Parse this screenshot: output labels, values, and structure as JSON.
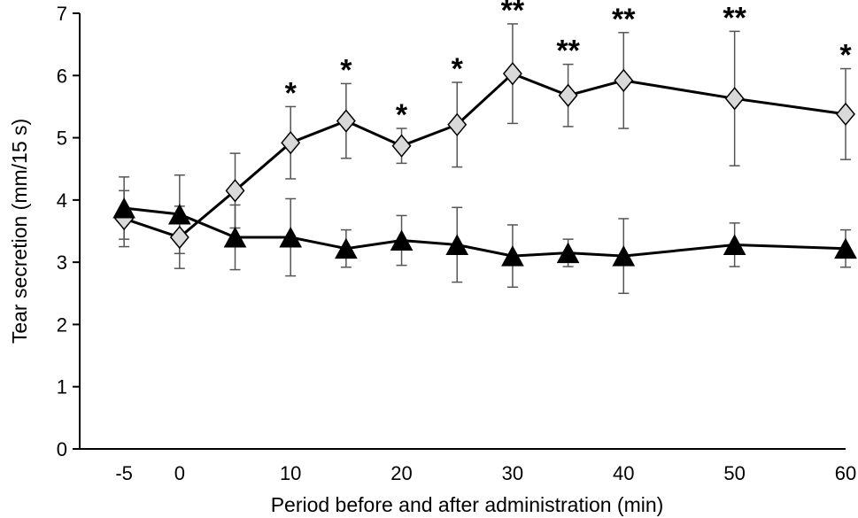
{
  "chart_data": {
    "type": "line",
    "title": "",
    "xlabel": "Period before and after administration (min)",
    "ylabel": "Tear secretion (mm/15 s)",
    "xlim": [
      -9,
      60
    ],
    "ylim": [
      0,
      7
    ],
    "x_ticks": [
      -5,
      0,
      10,
      20,
      30,
      40,
      50,
      60
    ],
    "x_tick_labels": [
      "-5",
      "0",
      "10",
      "20",
      "30",
      "40",
      "50",
      "60"
    ],
    "y_ticks": [
      0,
      1,
      2,
      3,
      4,
      5,
      6,
      7
    ],
    "y_tick_labels": [
      "0",
      "1",
      "2",
      "3",
      "4",
      "5",
      "6",
      "7"
    ],
    "grid": false,
    "x": [
      -5,
      0,
      5,
      10,
      15,
      20,
      25,
      30,
      35,
      40,
      50,
      60
    ],
    "series": [
      {
        "marker": "diamond",
        "fill": "#d9d9d9",
        "values": [
          3.7,
          3.4,
          4.15,
          4.92,
          5.27,
          4.87,
          5.21,
          6.03,
          5.68,
          5.92,
          5.63,
          5.38
        ],
        "error": [
          0.45,
          0.5,
          0.6,
          0.58,
          0.6,
          0.28,
          0.68,
          0.8,
          0.5,
          0.77,
          1.08,
          0.73
        ],
        "annotations": [
          "",
          "",
          "",
          "*",
          "*",
          "*",
          "*",
          "**",
          "**",
          "**",
          "**",
          "*"
        ]
      },
      {
        "marker": "triangle",
        "fill": "#000000",
        "values": [
          3.87,
          3.77,
          3.4,
          3.4,
          3.22,
          3.35,
          3.28,
          3.1,
          3.15,
          3.1,
          3.28,
          3.22
        ],
        "error": [
          0.5,
          0.63,
          0.52,
          0.62,
          0.3,
          0.4,
          0.6,
          0.5,
          0.22,
          0.6,
          0.35,
          0.3
        ],
        "annotations": [
          "",
          "",
          "",
          "",
          "",
          "",
          "",
          "",
          "",
          "",
          "",
          ""
        ]
      }
    ]
  }
}
